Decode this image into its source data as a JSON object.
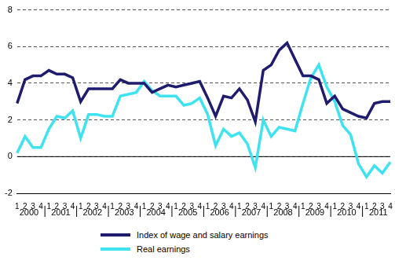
{
  "chart_data": {
    "type": "line",
    "categories": [
      "1",
      "2",
      "3",
      "4",
      "1",
      "2",
      "3",
      "4",
      "1",
      "2",
      "3",
      "4",
      "1",
      "2",
      "3",
      "4",
      "1",
      "2",
      "3",
      "4",
      "1",
      "2",
      "3",
      "4",
      "1",
      "2",
      "3",
      "4",
      "1",
      "2",
      "3",
      "4",
      "1",
      "2",
      "3",
      "4",
      "1",
      "2",
      "3",
      "4",
      "1",
      "2",
      "3",
      "4",
      "1",
      "2",
      "3",
      "4"
    ],
    "groups": [
      "2000",
      "2001",
      "2002",
      "2003",
      "2004",
      "2005",
      "2006",
      "2007",
      "2008",
      "2009",
      "2010",
      "2011"
    ],
    "series": [
      {
        "name": "Index of wage and salary earnings",
        "color": "#1f1c6e",
        "values": [
          2.9,
          4.2,
          4.4,
          4.4,
          4.7,
          4.5,
          4.5,
          4.3,
          3.0,
          3.7,
          3.7,
          3.7,
          3.7,
          4.2,
          4.0,
          4.0,
          4.0,
          3.5,
          3.7,
          3.9,
          3.8,
          3.9,
          4.0,
          4.1,
          3.2,
          2.2,
          3.3,
          3.2,
          3.7,
          3.1,
          1.9,
          4.7,
          5.0,
          5.8,
          6.2,
          5.3,
          4.4,
          4.4,
          4.2,
          2.9,
          3.3,
          2.6,
          2.4,
          2.2,
          2.1,
          2.9,
          3.0,
          3.0
        ]
      },
      {
        "name": "Real earnings",
        "color": "#3fe3f0",
        "values": [
          0.2,
          1.1,
          0.5,
          0.5,
          1.5,
          2.2,
          2.1,
          2.5,
          1.0,
          2.3,
          2.3,
          2.2,
          2.2,
          3.3,
          3.4,
          3.5,
          4.1,
          3.6,
          3.3,
          3.3,
          3.3,
          2.8,
          2.9,
          3.2,
          2.3,
          0.6,
          1.5,
          1.1,
          1.3,
          0.7,
          -0.6,
          2.0,
          1.1,
          1.6,
          1.5,
          1.4,
          2.9,
          4.3,
          5.0,
          3.8,
          3.0,
          1.7,
          1.2,
          -0.4,
          -1.1,
          -0.5,
          -0.9,
          -0.3
        ]
      }
    ],
    "ylim": [
      -2,
      8
    ],
    "yticks": [
      -2,
      0,
      2,
      4,
      6,
      8
    ],
    "grid": true,
    "legend": "bottom"
  }
}
